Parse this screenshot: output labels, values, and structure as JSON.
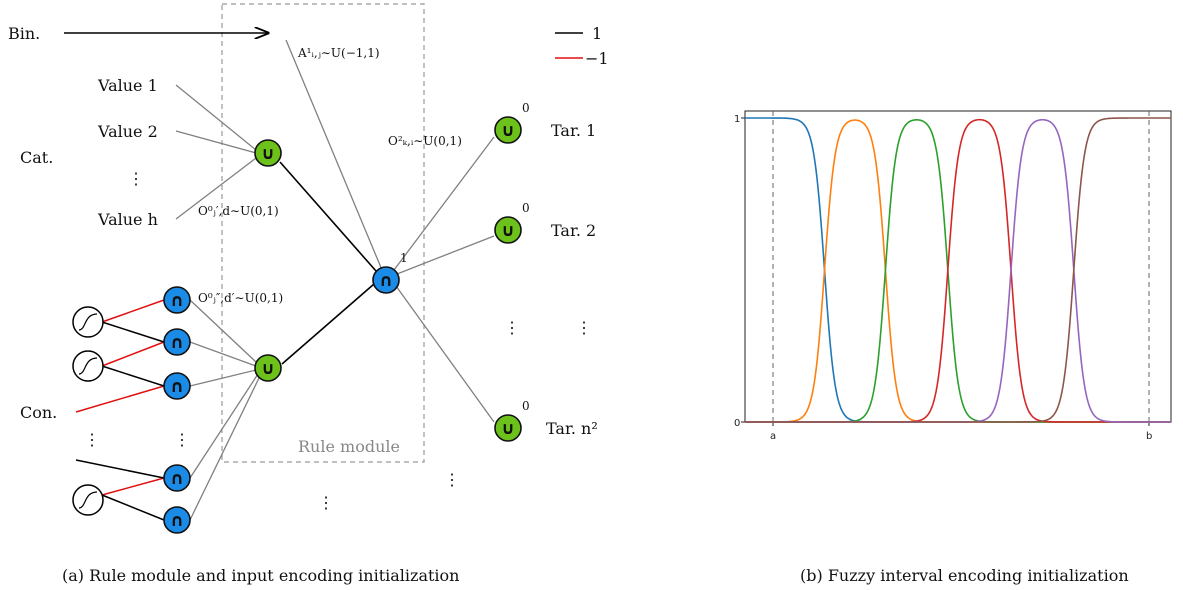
{
  "left": {
    "caption": "(a) Rule module and input encoding initialization",
    "bin_label": "Bin.",
    "cat_label": "Cat.",
    "con_label": "Con.",
    "values": [
      "Value 1",
      "Value 2",
      "⋮",
      "Value h"
    ],
    "annotations": {
      "a_init": "A¹ᵢ,ⱼ∼U(−1,1)",
      "o_cat": "O⁰ⱼ′,d∼U(0,1)",
      "o_con": "O⁰ⱼ″,d′∼U(0,1)",
      "o_tar": "O²ₖ,ᵢ∼U(0,1)"
    },
    "rule_module_label": "Rule module",
    "legend": [
      {
        "label": "1",
        "color": "#000000"
      },
      {
        "label": "−1",
        "color": "#e01010"
      }
    ],
    "targets": [
      "Tar. 1",
      "Tar. 2",
      "Tar. n²"
    ],
    "target_superscript": "0",
    "mid_superscript": "1",
    "dots": "⋮",
    "union_symbol": "∪",
    "intersect_symbol": "∩",
    "colors": {
      "union": "#6cc21a",
      "intersect": "#1a8be6",
      "positive": "#000000",
      "negative": "#e01010",
      "gray": "#808080"
    }
  },
  "right": {
    "caption": "(b) Fuzzy interval encoding initialization",
    "chart_data": {
      "type": "line",
      "xticks": [
        "a",
        "b"
      ],
      "yticks": [
        "0",
        "1"
      ],
      "ylim": [
        0,
        1
      ],
      "grid": false,
      "series_colors": [
        "#1f77b4",
        "#ff7f0e",
        "#2ca02c",
        "#d62728",
        "#9467bd",
        "#8c564b"
      ],
      "intervals": [
        {
          "lo": -1.0,
          "hi": 0.137
        },
        {
          "lo": 0.137,
          "hi": 0.299
        },
        {
          "lo": 0.299,
          "hi": 0.465
        },
        {
          "lo": 0.465,
          "hi": 0.633
        },
        {
          "lo": 0.633,
          "hi": 0.8
        },
        {
          "lo": 0.8,
          "hi": 2.0
        }
      ],
      "boundary_markers": [
        0.0,
        1.0
      ]
    }
  }
}
